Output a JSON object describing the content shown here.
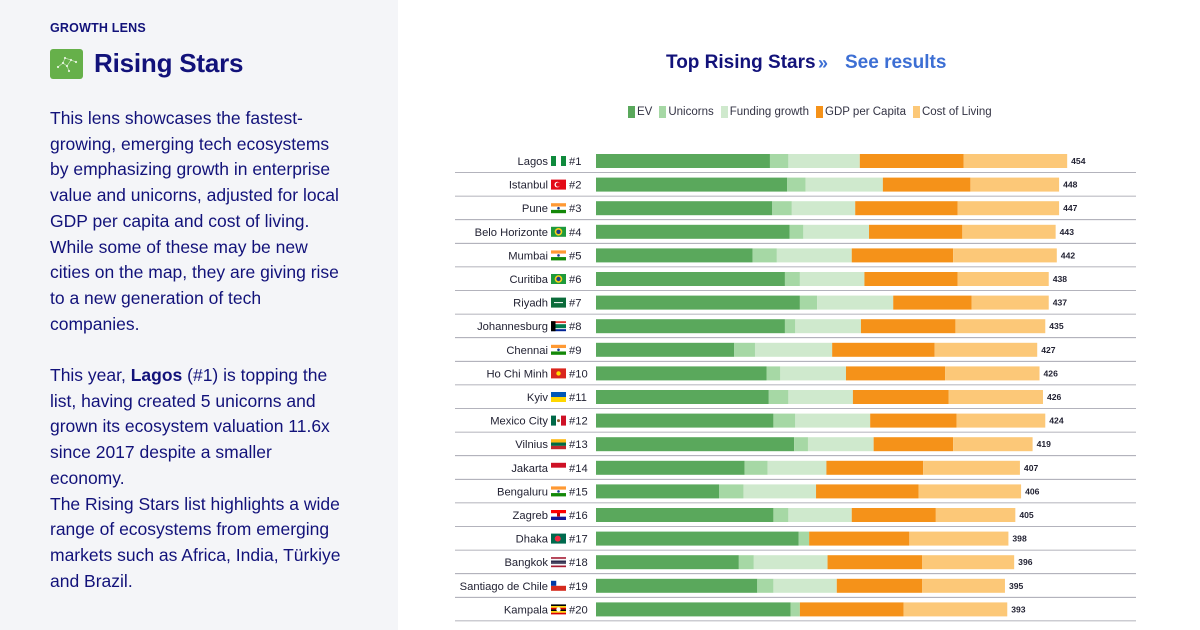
{
  "sidebar": {
    "eyebrow": "GROWTH LENS",
    "title": "Rising Stars",
    "icon": "constellation-icon",
    "paragraph1": "This lens showcases the fastest-growing, emerging tech ecosystems by emphasizing growth in enterprise value and unicorns, adjusted for local GDP per capita and cost of living. While some of these may be new cities on the map, they are giving rise to a new generation of tech companies.",
    "paragraph2_pre": "This year, ",
    "paragraph2_bold": "Lagos",
    "paragraph2_post": " (#1) is topping the list, having created 5 unicorns and grown its ecosystem valuation 11.6x since 2017 despite a smaller economy.",
    "paragraph3": "The Rising Stars list highlights a wide range of ecosystems from emerging markets such as Africa, India, Türkiye and Brazil."
  },
  "header": {
    "title": "Top Rising Stars",
    "arrow": "»",
    "link": "See results"
  },
  "colors": {
    "EV": "#5aa85c",
    "Unicorns": "#a6d8a5",
    "Funding growth": "#cfe9cd",
    "GDP per Capita": "#f59219",
    "Cost of Living": "#fcc878",
    "text_navy": "#12127a",
    "link_blue": "#3d6fd4"
  },
  "chart_data": {
    "type": "bar",
    "orientation": "horizontal",
    "stacked": true,
    "title": "Top Rising Stars",
    "legend_position": "top",
    "grid": false,
    "series_names": [
      "EV",
      "Unicorns",
      "Funding growth",
      "GDP per Capita",
      "Cost of Living"
    ],
    "rows": [
      {
        "city": "Lagos",
        "flag": "NG",
        "rank": "#1",
        "total": 454,
        "segments": [
          151,
          16,
          62,
          90,
          90
        ]
      },
      {
        "city": "Istanbul",
        "flag": "TR",
        "rank": "#2",
        "total": 448,
        "segments": [
          166,
          16,
          67,
          76,
          77
        ]
      },
      {
        "city": "Pune",
        "flag": "IN",
        "rank": "#3",
        "total": 447,
        "segments": [
          153,
          17,
          55,
          89,
          88
        ]
      },
      {
        "city": "Belo Horizonte",
        "flag": "BR",
        "rank": "#4",
        "total": 443,
        "segments": [
          168,
          12,
          57,
          81,
          81
        ]
      },
      {
        "city": "Mumbai",
        "flag": "IN",
        "rank": "#5",
        "total": 442,
        "segments": [
          136,
          21,
          65,
          88,
          90
        ]
      },
      {
        "city": "Curitiba",
        "flag": "BR",
        "rank": "#6",
        "total": 438,
        "segments": [
          164,
          13,
          56,
          81,
          79
        ]
      },
      {
        "city": "Riyadh",
        "flag": "SA",
        "rank": "#7",
        "total": 437,
        "segments": [
          177,
          15,
          66,
          68,
          67
        ]
      },
      {
        "city": "Johannesburg",
        "flag": "ZA",
        "rank": "#8",
        "total": 435,
        "segments": [
          164,
          9,
          57,
          82,
          78
        ]
      },
      {
        "city": "Chennai",
        "flag": "IN",
        "rank": "#9",
        "total": 427,
        "segments": [
          120,
          18,
          67,
          89,
          89
        ]
      },
      {
        "city": "Ho Chi Minh",
        "flag": "VN",
        "rank": "#10",
        "total": 426,
        "segments": [
          148,
          12,
          57,
          86,
          82
        ]
      },
      {
        "city": "Kyiv",
        "flag": "UA",
        "rank": "#11",
        "total": 426,
        "segments": [
          150,
          17,
          56,
          83,
          82
        ]
      },
      {
        "city": "Mexico City",
        "flag": "MX",
        "rank": "#12",
        "total": 424,
        "segments": [
          154,
          19,
          65,
          75,
          77
        ]
      },
      {
        "city": "Vilnius",
        "flag": "LT",
        "rank": "#13",
        "total": 419,
        "segments": [
          172,
          12,
          57,
          69,
          69
        ]
      },
      {
        "city": "Jakarta",
        "flag": "ID",
        "rank": "#14",
        "total": 407,
        "segments": [
          129,
          20,
          51,
          84,
          84
        ]
      },
      {
        "city": "Bengaluru",
        "flag": "IN",
        "rank": "#15",
        "total": 406,
        "segments": [
          107,
          21,
          63,
          89,
          89
        ]
      },
      {
        "city": "Zagreb",
        "flag": "HR",
        "rank": "#16",
        "total": 405,
        "segments": [
          154,
          13,
          55,
          73,
          69
        ]
      },
      {
        "city": "Dhaka",
        "flag": "BD",
        "rank": "#17",
        "total": 398,
        "segments": [
          176,
          9,
          0,
          87,
          86
        ]
      },
      {
        "city": "Bangkok",
        "flag": "TH",
        "rank": "#18",
        "total": 396,
        "segments": [
          124,
          13,
          64,
          82,
          80
        ]
      },
      {
        "city": "Santiago de Chile",
        "flag": "CL",
        "rank": "#19",
        "total": 395,
        "segments": [
          140,
          14,
          55,
          74,
          72
        ]
      },
      {
        "city": "Kampala",
        "flag": "UG",
        "rank": "#20",
        "total": 393,
        "segments": [
          169,
          8,
          0,
          90,
          90
        ]
      }
    ]
  }
}
